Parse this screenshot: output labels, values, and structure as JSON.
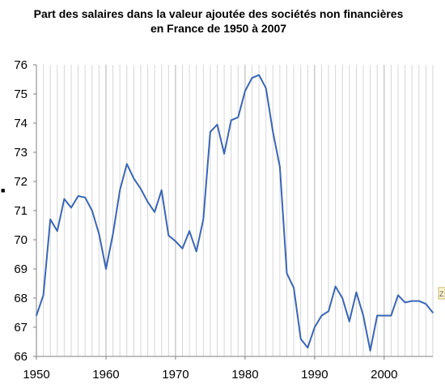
{
  "chart_data": {
    "type": "line",
    "title_lines": [
      "Part des salaires dans la valeur ajoutée des sociétés non financières",
      "en France de 1950 à 2007"
    ],
    "xlabel": "",
    "ylabel": "",
    "xlim": [
      1950,
      2007
    ],
    "ylim": [
      66,
      76
    ],
    "x_ticks": [
      "1950",
      "1960",
      "1970",
      "1980",
      "1990",
      "2000"
    ],
    "y_ticks": [
      "66",
      "67",
      "68",
      "69",
      "70",
      "71",
      "72",
      "73",
      "74",
      "75",
      "76"
    ],
    "grid": "vertical",
    "line_color": "#3a66b5",
    "series": [
      {
        "x": [
          1950,
          1951,
          1952,
          1953,
          1954,
          1955,
          1956,
          1957,
          1958,
          1959,
          1960,
          1961,
          1962,
          1963,
          1964,
          1965,
          1966,
          1967,
          1968,
          1969,
          1970,
          1971,
          1972,
          1973,
          1974,
          1975,
          1976,
          1977,
          1978,
          1979,
          1980,
          1981,
          1982,
          1983,
          1984,
          1985,
          1986,
          1987,
          1988,
          1989,
          1990,
          1991,
          1992,
          1993,
          1994,
          1995,
          1996,
          1997,
          1998,
          1999,
          2000,
          2001,
          2002,
          2003,
          2004,
          2005,
          2006,
          2007
        ],
        "values": [
          67.4,
          68.1,
          70.7,
          70.3,
          71.4,
          71.1,
          71.5,
          71.45,
          71.0,
          70.2,
          69.0,
          70.2,
          71.7,
          72.6,
          72.1,
          71.75,
          71.3,
          70.95,
          71.7,
          70.15,
          69.95,
          69.7,
          70.3,
          69.6,
          70.7,
          73.7,
          73.95,
          72.95,
          74.1,
          74.2,
          75.1,
          75.55,
          75.65,
          75.2,
          73.7,
          72.5,
          68.85,
          68.35,
          66.6,
          66.3,
          67.0,
          67.4,
          67.55,
          68.4,
          68.0,
          67.2,
          68.2,
          67.4,
          66.2,
          67.4,
          67.4,
          67.4,
          68.1,
          67.85,
          67.9,
          67.9,
          67.8,
          67.5
        ]
      }
    ]
  },
  "side_glyphs": {
    "left_marker": "■",
    "right_marker": "Z"
  }
}
